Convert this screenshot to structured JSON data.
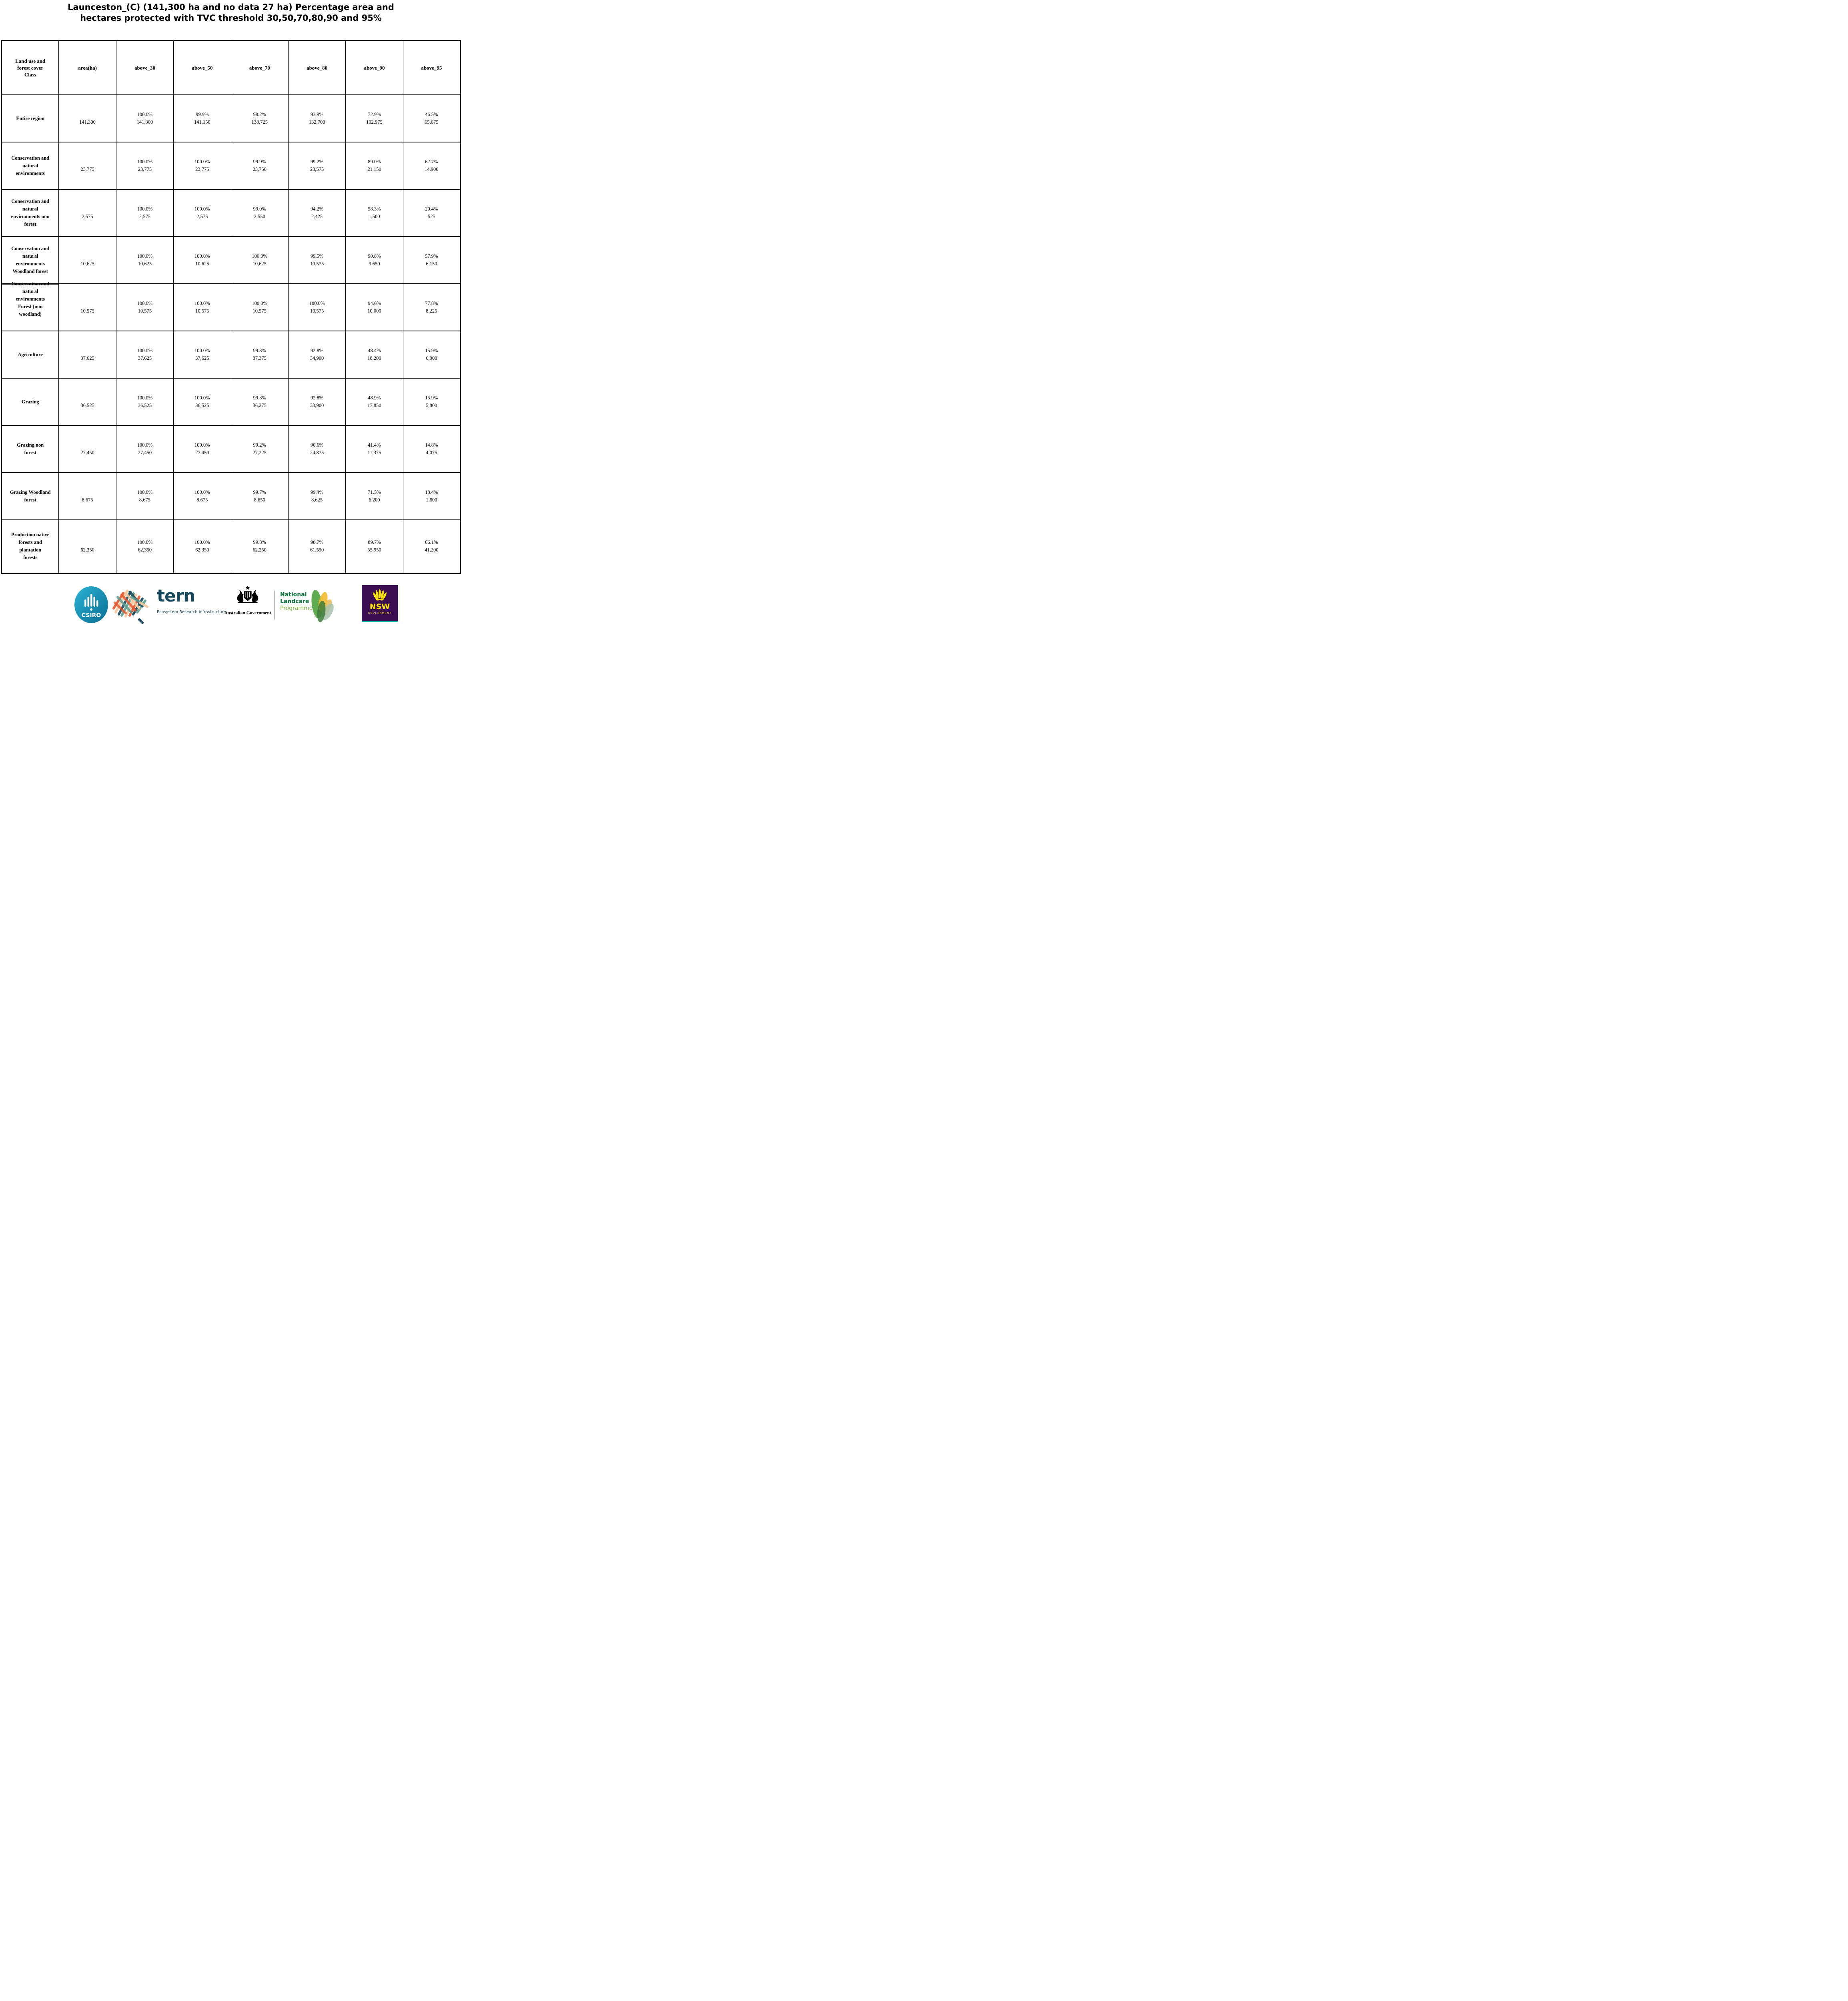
{
  "title": {
    "line1": "Launceston_(C) (141,300 ha and no data 27 ha) Percentage area and",
    "line2": "hectares protected with TVC threshold 30,50,70,80,90 and 95%"
  },
  "table": {
    "header": {
      "class_lines": [
        "Land use and",
        "forest cover",
        "Class"
      ],
      "cols": [
        "area(ha)",
        "above_30",
        "above_50",
        "above_70",
        "above_80",
        "above_90",
        "above_95"
      ]
    },
    "rows": [
      {
        "label_lines": [
          "Entire region"
        ],
        "area": "141,300",
        "cells": [
          {
            "pct": "100.0%",
            "val": "141,300"
          },
          {
            "pct": "99.9%",
            "val": "141,150"
          },
          {
            "pct": "98.2%",
            "val": "138,725"
          },
          {
            "pct": "93.9%",
            "val": "132,700"
          },
          {
            "pct": "72.9%",
            "val": "102,975"
          },
          {
            "pct": "46.5%",
            "val": "65,675"
          }
        ]
      },
      {
        "label_lines": [
          "Conservation and",
          "natural",
          "environments"
        ],
        "area": "23,775",
        "cells": [
          {
            "pct": "100.0%",
            "val": "23,775"
          },
          {
            "pct": "100.0%",
            "val": "23,775"
          },
          {
            "pct": "99.9%",
            "val": "23,750"
          },
          {
            "pct": "99.2%",
            "val": "23,575"
          },
          {
            "pct": "89.0%",
            "val": "21,150"
          },
          {
            "pct": "62.7%",
            "val": "14,900"
          }
        ]
      },
      {
        "label_lines": [
          "Conservation and",
          "natural",
          "environments non",
          "forest"
        ],
        "area": "2,575",
        "cells": [
          {
            "pct": "100.0%",
            "val": "2,575"
          },
          {
            "pct": "100.0%",
            "val": "2,575"
          },
          {
            "pct": "99.0%",
            "val": "2,550"
          },
          {
            "pct": "94.2%",
            "val": "2,425"
          },
          {
            "pct": "58.3%",
            "val": "1,500"
          },
          {
            "pct": "20.4%",
            "val": "525"
          }
        ]
      },
      {
        "label_lines": [
          "Conservation and",
          "natural",
          "environments",
          "Woodland forest"
        ],
        "area": "10,625",
        "cells": [
          {
            "pct": "100.0%",
            "val": "10,625"
          },
          {
            "pct": "100.0%",
            "val": "10,625"
          },
          {
            "pct": "100.0%",
            "val": "10,625"
          },
          {
            "pct": "99.5%",
            "val": "10,575"
          },
          {
            "pct": "90.8%",
            "val": "9,650"
          },
          {
            "pct": "57.9%",
            "val": "6,150"
          }
        ]
      },
      {
        "label_lines": [
          "Conservation and",
          "natural",
          "environments",
          "Forest (non",
          "woodland)"
        ],
        "overflow_up": true,
        "area": "10,575",
        "cells": [
          {
            "pct": "100.0%",
            "val": "10,575"
          },
          {
            "pct": "100.0%",
            "val": "10,575"
          },
          {
            "pct": "100.0%",
            "val": "10,575"
          },
          {
            "pct": "100.0%",
            "val": "10,575"
          },
          {
            "pct": "94.6%",
            "val": "10,000"
          },
          {
            "pct": "77.8%",
            "val": "8,225"
          }
        ]
      },
      {
        "label_lines": [
          "Agriculture"
        ],
        "area": "37,625",
        "cells": [
          {
            "pct": "100.0%",
            "val": "37,625"
          },
          {
            "pct": "100.0%",
            "val": "37,625"
          },
          {
            "pct": "99.3%",
            "val": "37,375"
          },
          {
            "pct": "92.8%",
            "val": "34,900"
          },
          {
            "pct": "48.4%",
            "val": "18,200"
          },
          {
            "pct": "15.9%",
            "val": "6,000"
          }
        ]
      },
      {
        "label_lines": [
          "Grazing"
        ],
        "area": "36,525",
        "cells": [
          {
            "pct": "100.0%",
            "val": "36,525"
          },
          {
            "pct": "100.0%",
            "val": "36,525"
          },
          {
            "pct": "99.3%",
            "val": "36,275"
          },
          {
            "pct": "92.8%",
            "val": "33,900"
          },
          {
            "pct": "48.9%",
            "val": "17,850"
          },
          {
            "pct": "15.9%",
            "val": "5,800"
          }
        ]
      },
      {
        "label_lines": [
          "Grazing non",
          "forest"
        ],
        "area": "27,450",
        "cells": [
          {
            "pct": "100.0%",
            "val": "27,450"
          },
          {
            "pct": "100.0%",
            "val": "27,450"
          },
          {
            "pct": "99.2%",
            "val": "27,225"
          },
          {
            "pct": "90.6%",
            "val": "24,875"
          },
          {
            "pct": "41.4%",
            "val": "11,375"
          },
          {
            "pct": "14.8%",
            "val": "4,075"
          }
        ]
      },
      {
        "label_lines": [
          "Grazing Woodland",
          "forest"
        ],
        "area": "8,675",
        "cells": [
          {
            "pct": "100.0%",
            "val": "8,675"
          },
          {
            "pct": "100.0%",
            "val": "8,675"
          },
          {
            "pct": "99.7%",
            "val": "8,650"
          },
          {
            "pct": "99.4%",
            "val": "8,625"
          },
          {
            "pct": "71.5%",
            "val": "6,200"
          },
          {
            "pct": "18.4%",
            "val": "1,600"
          }
        ]
      },
      {
        "label_lines": [
          "Production native",
          "forests and",
          "plantation",
          "forests"
        ],
        "area": "62,350",
        "cells": [
          {
            "pct": "100.0%",
            "val": "62,350"
          },
          {
            "pct": "100.0%",
            "val": "62,350"
          },
          {
            "pct": "99.8%",
            "val": "62,250"
          },
          {
            "pct": "98.7%",
            "val": "61,550"
          },
          {
            "pct": "89.7%",
            "val": "55,950"
          },
          {
            "pct": "66.1%",
            "val": "41,200"
          }
        ]
      }
    ]
  },
  "footer": {
    "csiro_label": "CSIRO",
    "tern_word": "tern",
    "tern_tagline": "Ecosystem Research Infrastructure",
    "ausgov_label": "Australian Government",
    "landcare_line1": "National",
    "landcare_line2": "Landcare",
    "landcare_line3": "Programme",
    "nsw_word": "NSW",
    "nsw_sub": "GOVERNMENT"
  },
  "colors": {
    "csiro_teal_light": "#2bb3d4",
    "csiro_teal_dark": "#0b6e94",
    "tern_dark_teal": "#16475a",
    "tern_orange": "#e4572e",
    "tern_peach": "#f4c9a0",
    "tern_sage": "#5f9e8f",
    "landcare_green": "#0e7a3e",
    "landcare_light_green": "#7cb342",
    "nsw_purple": "#3b0e54",
    "nsw_yellow": "#ffe600",
    "nsw_teal_strip": "#00aaa4"
  }
}
